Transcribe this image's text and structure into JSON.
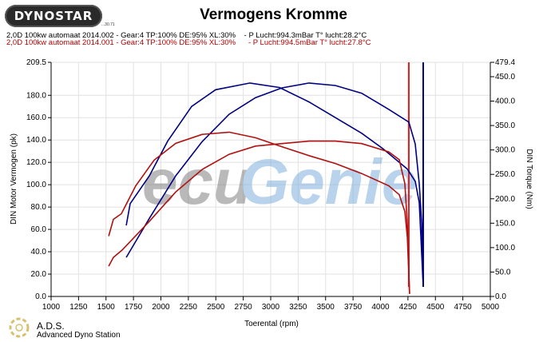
{
  "header": {
    "logo_text": "DYNOSTAR",
    "logo_sub": "...30.71",
    "title": "Vermogens Kromme",
    "legend": [
      {
        "text": "2,0D 100kw automaat 2014.002 - Gear:4 TP:100% DE:95% XL:30%    - P Lucht:994.3mBar T° lucht:28.2°C",
        "color": "#000080"
      },
      {
        "text": "2,0D 100kw automaat 2014.001 - Gear:4 TP:100% DE:95% XL:30%      - P Lucht:994.5mBar T° lucht:27.8°C",
        "color": "#c00000"
      }
    ]
  },
  "watermark": {
    "text_left": "ecu",
    "text_right": "Genie"
  },
  "footer": {
    "brand": "A.D.S.",
    "brand_full": "Advanced Dyno Station"
  },
  "chart_data": {
    "type": "line",
    "title": "Vermogens Kromme",
    "xlabel": "Toerental (rpm)",
    "ylabel": "DIN Motor Vermogen (pk)",
    "y2label": "DIN Torque (Nm)",
    "xlim": [
      1000,
      5000
    ],
    "ylim": [
      0,
      209.5
    ],
    "y2lim": [
      0,
      479.4
    ],
    "grid": true,
    "xticks": [
      "1000",
      "1250",
      "1500",
      "1750",
      "2000",
      "2250",
      "2500",
      "2750",
      "3000",
      "3250",
      "3500",
      "3750",
      "4000",
      "4250",
      "4500",
      "4750",
      "5000"
    ],
    "yticks": [
      "209.5",
      "180.0",
      "160.0",
      "140.0",
      "120.0",
      "100.0",
      "80.0",
      "60.0",
      "40.0",
      "20.0",
      "0.0"
    ],
    "y2ticks": [
      "479.4",
      "450.0",
      "400.0",
      "350.0",
      "300.0",
      "250.0",
      "200.0",
      "150.0",
      "100.0",
      "50.0",
      "0.0"
    ],
    "series": [
      {
        "run": "2014.002",
        "quantity": "power",
        "axis": "left",
        "color": "#000080",
        "x": [
          1684,
          1720,
          1895,
          2062,
          2280,
          2498,
          2811,
          3080,
          3349,
          3589,
          3829,
          4025,
          4244,
          4316,
          4353,
          4389
        ],
        "y": [
          63.6,
          83,
          108,
          139,
          170,
          185,
          191,
          187,
          174,
          160,
          146,
          132,
          114,
          103,
          84,
          9
        ]
      },
      {
        "run": "2014.002",
        "quantity": "torque",
        "axis": "right",
        "color": "#000080",
        "x": [
          1684,
          1895,
          2135,
          2375,
          2622,
          2862,
          3102,
          3349,
          3589,
          3829,
          4076,
          4258,
          4316,
          4353,
          4375,
          4389
        ],
        "y": [
          80,
          160,
          247,
          317,
          373,
          407,
          427,
          437,
          432,
          416,
          383,
          357,
          312,
          231,
          149,
          21
        ]
      },
      {
        "run": "2014.001",
        "quantity": "power",
        "axis": "left",
        "color": "#b01010",
        "x": [
          1524,
          1567,
          1640,
          1771,
          1938,
          2135,
          2375,
          2622,
          2862,
          3102,
          3349,
          3589,
          3829,
          4076,
          4171,
          4222,
          4244,
          4265
        ],
        "y": [
          54,
          69,
          74,
          99,
          122,
          137,
          145,
          147,
          142,
          134,
          126,
          119,
          110,
          99,
          91,
          76,
          53,
          3
        ]
      },
      {
        "run": "2014.001",
        "quantity": "torque",
        "axis": "right",
        "color": "#b01010",
        "x": [
          1524,
          1567,
          1647,
          1895,
          2135,
          2375,
          2622,
          2862,
          3102,
          3349,
          3589,
          3829,
          4076,
          4171,
          4222,
          4244,
          4265
        ],
        "y": [
          62,
          80,
          95,
          154,
          214,
          260,
          291,
          308,
          313,
          318,
          318,
          313,
          296,
          280,
          231,
          149,
          5
        ]
      }
    ],
    "markers": [
      {
        "rpm": 4258,
        "color": "#e02020"
      },
      {
        "rpm": 4389,
        "color": "#000090"
      }
    ]
  }
}
